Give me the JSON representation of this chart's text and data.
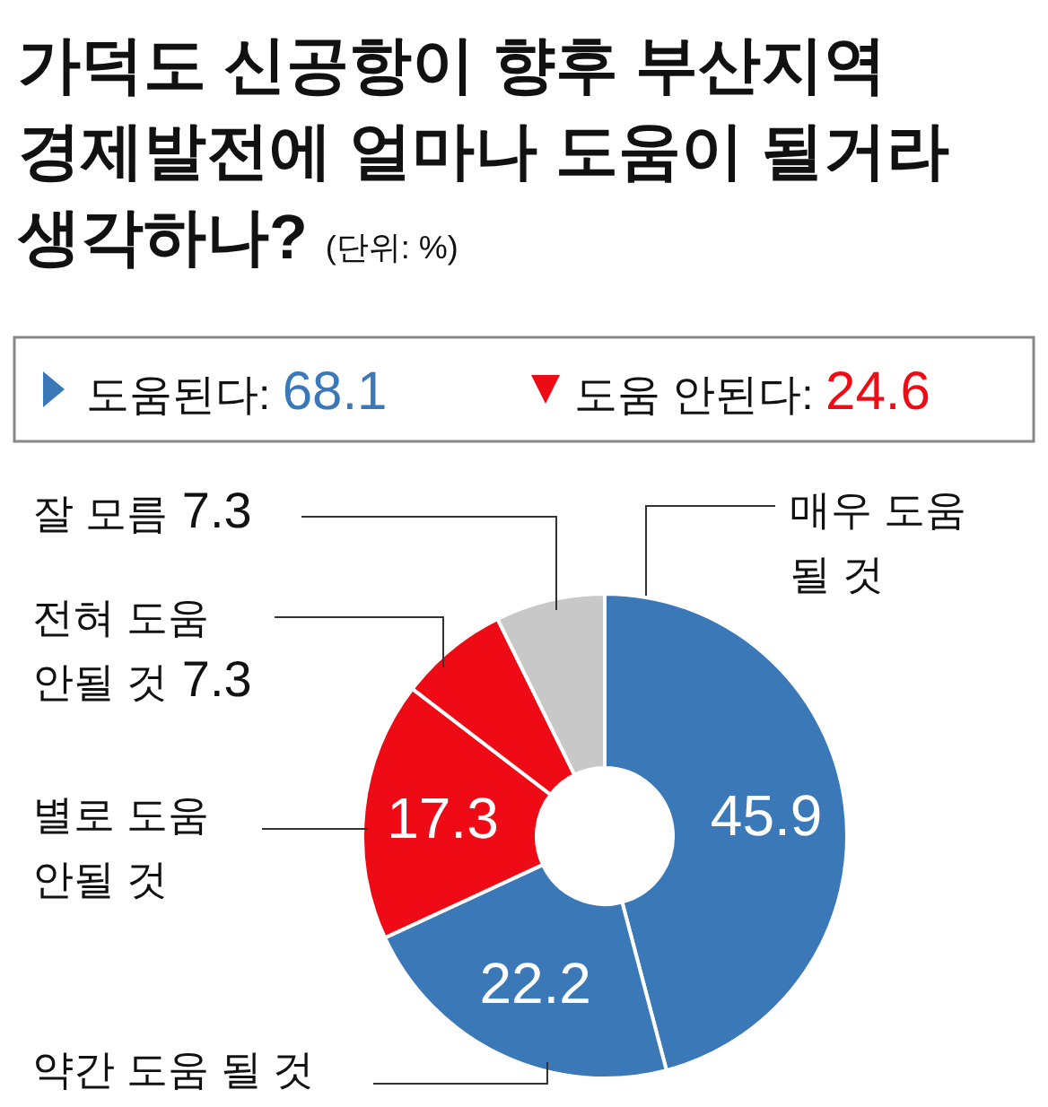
{
  "chart_data": {
    "type": "donut",
    "title": "가덕도 신공항이 향후 부산지역 경제발전에 얼마나 도움이 될거라 생각하나?",
    "subtitle": "(단위: %)",
    "categories": [
      "매우 도움 될 것",
      "약간 도움 될 것",
      "별로 도움 안될 것",
      "전혀 도움 안될 것",
      "잘 모름"
    ],
    "values": [
      45.9,
      22.2,
      17.3,
      7.3,
      7.3
    ],
    "colors": [
      "#3a78b8",
      "#3a78b8",
      "#ee0b16",
      "#ee0b16",
      "#c8c8c8"
    ],
    "value_labels": [
      "45.9",
      "22.2",
      "17.3",
      "7.3",
      "7.3"
    ],
    "annotations": [
      "도움된다: 68.1",
      "도움 안된다: 24.6"
    ]
  }
}
